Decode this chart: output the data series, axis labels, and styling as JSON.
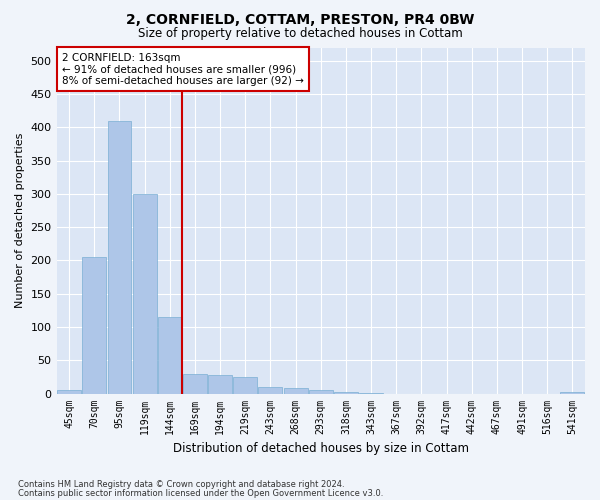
{
  "title": "2, CORNFIELD, COTTAM, PRESTON, PR4 0BW",
  "subtitle": "Size of property relative to detached houses in Cottam",
  "xlabel": "Distribution of detached houses by size in Cottam",
  "ylabel": "Number of detached properties",
  "categories": [
    "45sqm",
    "70sqm",
    "95sqm",
    "119sqm",
    "144sqm",
    "169sqm",
    "194sqm",
    "219sqm",
    "243sqm",
    "268sqm",
    "293sqm",
    "318sqm",
    "343sqm",
    "367sqm",
    "392sqm",
    "417sqm",
    "442sqm",
    "467sqm",
    "491sqm",
    "516sqm",
    "541sqm"
  ],
  "values": [
    5,
    205,
    410,
    300,
    115,
    30,
    28,
    25,
    10,
    8,
    5,
    2,
    1,
    0,
    0,
    0,
    0,
    0,
    0,
    0,
    2
  ],
  "bar_color": "#aec6e8",
  "bar_edge_color": "#7aafd4",
  "vline_color": "#cc0000",
  "vline_pos": 4.5,
  "ylim": [
    0,
    520
  ],
  "yticks": [
    0,
    50,
    100,
    150,
    200,
    250,
    300,
    350,
    400,
    450,
    500
  ],
  "annotation_title": "2 CORNFIELD: 163sqm",
  "annotation_line1": "← 91% of detached houses are smaller (996)",
  "annotation_line2": "8% of semi-detached houses are larger (92) →",
  "annotation_box_color": "#cc0000",
  "footnote1": "Contains HM Land Registry data © Crown copyright and database right 2024.",
  "footnote2": "Contains public sector information licensed under the Open Government Licence v3.0.",
  "fig_facecolor": "#f0f4fa",
  "ax_facecolor": "#dce6f5"
}
